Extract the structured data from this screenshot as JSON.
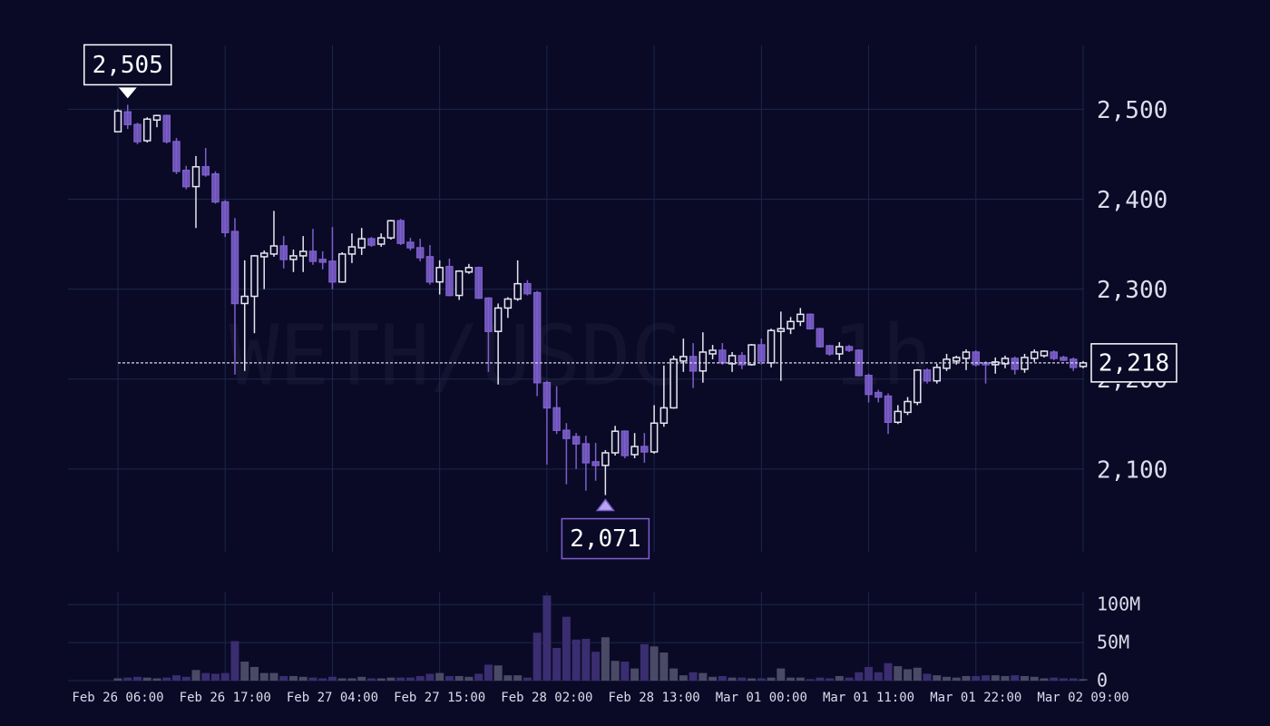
{
  "chart_data": {
    "type": "candlestick",
    "watermark": "WETH/USDC · 1h",
    "categories": [
      "Feb 26 06:00",
      null,
      null,
      null,
      null,
      null,
      null,
      null,
      null,
      null,
      null,
      "Feb 26 17:00",
      null,
      null,
      null,
      null,
      null,
      null,
      null,
      null,
      null,
      null,
      "Feb 27 04:00",
      null,
      null,
      null,
      null,
      null,
      null,
      null,
      null,
      null,
      null,
      "Feb 27 15:00",
      null,
      null,
      null,
      null,
      null,
      null,
      null,
      null,
      null,
      null,
      "Feb 28 02:00",
      null,
      null,
      null,
      null,
      null,
      null,
      null,
      null,
      null,
      null,
      "Feb 28 13:00",
      null,
      null,
      null,
      null,
      null,
      null,
      null,
      null,
      null,
      null,
      "Mar 01 00:00",
      null,
      null,
      null,
      null,
      null,
      null,
      null,
      null,
      null,
      null,
      "Mar 01 11:00",
      null,
      null,
      null,
      null,
      null,
      null,
      null,
      null,
      null,
      null,
      "Mar 01 22:00",
      null,
      null,
      null,
      null,
      null,
      null,
      null,
      null,
      null,
      null,
      "Mar 02 09:00"
    ],
    "open": [
      2475,
      2497,
      2483,
      2465,
      2488,
      2493,
      2464,
      2432,
      2414,
      2436,
      2428,
      2397,
      2364,
      2284,
      2292,
      2336,
      2339,
      2348,
      2333,
      2337,
      2342,
      2333,
      2331,
      2308,
      2339,
      2346,
      2356,
      2350,
      2357,
      2376,
      2352,
      2346,
      2336,
      2308,
      2325,
      2293,
      2319,
      2324,
      2290,
      2253,
      2279,
      2289,
      2306,
      2296,
      2196,
      2168,
      2143,
      2136,
      2128,
      2108,
      2104,
      2118,
      2142,
      2116,
      2125,
      2119,
      2151,
      2168,
      2220,
      2225,
      2209,
      2228,
      2232,
      2217,
      2226,
      2216,
      2238,
      2218,
      2253,
      2256,
      2264,
      2272,
      2256,
      2237,
      2228,
      2236,
      2232,
      2204,
      2185,
      2181,
      2152,
      2163,
      2174,
      2210,
      2198,
      2212,
      2220,
      2223,
      2230,
      2218,
      2216,
      2217,
      2223,
      2211,
      2223,
      2226,
      2230,
      2224,
      2222,
      2214
    ],
    "high": [
      2500,
      2505,
      2485,
      2491,
      2494,
      2494,
      2468,
      2437,
      2448,
      2457,
      2431,
      2399,
      2379,
      2332,
      2338,
      2343,
      2387,
      2359,
      2344,
      2359,
      2367,
      2342,
      2369,
      2341,
      2362,
      2368,
      2358,
      2362,
      2377,
      2378,
      2357,
      2356,
      2349,
      2332,
      2334,
      2321,
      2328,
      2325,
      2291,
      2284,
      2291,
      2332,
      2310,
      2298,
      2198,
      2192,
      2151,
      2140,
      2137,
      2129,
      2121,
      2148,
      2143,
      2140,
      2140,
      2171,
      2215,
      2226,
      2245,
      2240,
      2252,
      2238,
      2240,
      2230,
      2230,
      2239,
      2245,
      2256,
      2275,
      2269,
      2279,
      2273,
      2257,
      2238,
      2241,
      2238,
      2233,
      2206,
      2188,
      2184,
      2171,
      2180,
      2211,
      2212,
      2217,
      2228,
      2226,
      2233,
      2232,
      2220,
      2224,
      2226,
      2225,
      2228,
      2233,
      2232,
      2232,
      2226,
      2224,
      2220
    ],
    "low": [
      2475,
      2478,
      2461,
      2463,
      2480,
      2462,
      2428,
      2411,
      2368,
      2425,
      2395,
      2358,
      2205,
      2209,
      2251,
      2300,
      2336,
      2323,
      2319,
      2319,
      2327,
      2322,
      2300,
      2307,
      2329,
      2338,
      2347,
      2347,
      2355,
      2349,
      2343,
      2331,
      2305,
      2294,
      2292,
      2288,
      2317,
      2289,
      2208,
      2194,
      2268,
      2287,
      2293,
      2181,
      2105,
      2139,
      2083,
      2100,
      2076,
      2087,
      2071,
      2115,
      2112,
      2112,
      2107,
      2117,
      2147,
      2167,
      2208,
      2190,
      2196,
      2222,
      2216,
      2208,
      2211,
      2215,
      2216,
      2213,
      2198,
      2250,
      2259,
      2255,
      2235,
      2226,
      2221,
      2230,
      2203,
      2174,
      2174,
      2139,
      2150,
      2160,
      2171,
      2195,
      2195,
      2209,
      2216,
      2210,
      2214,
      2195,
      2206,
      2212,
      2205,
      2207,
      2219,
      2224,
      2221,
      2220,
      2209,
      2212
    ],
    "close": [
      2498,
      2483,
      2464,
      2489,
      2493,
      2464,
      2431,
      2414,
      2436,
      2427,
      2397,
      2363,
      2284,
      2292,
      2337,
      2340,
      2348,
      2333,
      2337,
      2342,
      2331,
      2330,
      2308,
      2339,
      2347,
      2356,
      2349,
      2357,
      2376,
      2351,
      2346,
      2335,
      2308,
      2324,
      2293,
      2320,
      2324,
      2290,
      2253,
      2279,
      2289,
      2306,
      2295,
      2196,
      2168,
      2143,
      2134,
      2128,
      2107,
      2104,
      2118,
      2142,
      2115,
      2125,
      2119,
      2151,
      2168,
      2222,
      2225,
      2209,
      2230,
      2232,
      2218,
      2226,
      2216,
      2238,
      2220,
      2254,
      2256,
      2264,
      2272,
      2256,
      2236,
      2228,
      2236,
      2232,
      2204,
      2183,
      2180,
      2152,
      2164,
      2175,
      2210,
      2198,
      2213,
      2222,
      2224,
      2230,
      2216,
      2216,
      2219,
      2223,
      2211,
      2224,
      2230,
      2231,
      2223,
      2221,
      2213,
      2218
    ],
    "volume": [
      3,
      4,
      5,
      4,
      3,
      4,
      7,
      5,
      14,
      10,
      9,
      10,
      52,
      25,
      18,
      10,
      10,
      6,
      6,
      5,
      4,
      3,
      5,
      3,
      3,
      5,
      3,
      3,
      4,
      4,
      4,
      6,
      9,
      10,
      6,
      6,
      5,
      9,
      21,
      20,
      7,
      7,
      4,
      63,
      112,
      43,
      84,
      54,
      55,
      38,
      57,
      26,
      25,
      16,
      48,
      45,
      37,
      16,
      7,
      11,
      10,
      5,
      6,
      4,
      4,
      3,
      3,
      4,
      16,
      4,
      4,
      2,
      4,
      3,
      6,
      4,
      11,
      18,
      11,
      23,
      19,
      15,
      17,
      9,
      7,
      5,
      4,
      6,
      6,
      7,
      7,
      6,
      7,
      6,
      5,
      3,
      4,
      3,
      3,
      2
    ],
    "up_color": "#e6e6f2",
    "down_color": "#7d5fcc",
    "volume_up_color": "#4a4a66",
    "volume_down_color": "#3a2d70",
    "ylim": [
      2008,
      2571
    ],
    "yticks": [
      {
        "value": 2100,
        "label": "2,100"
      },
      {
        "value": 2200,
        "label": "2,200"
      },
      {
        "value": 2300,
        "label": "2,300"
      },
      {
        "value": 2400,
        "label": "2,400"
      },
      {
        "value": 2500,
        "label": "2,500"
      }
    ],
    "volume_ylim": [
      0,
      117
    ],
    "volume_yticks": [
      0,
      {
        "value": 50,
        "label": "50M"
      },
      {
        "value": 100,
        "label": "100M"
      }
    ],
    "grid": true,
    "max_label": {
      "value": 2505,
      "label": "2,505"
    },
    "min_label": {
      "value": 2071,
      "label": "2,071"
    },
    "last_label": {
      "value": 2218,
      "label": "2,218"
    }
  }
}
